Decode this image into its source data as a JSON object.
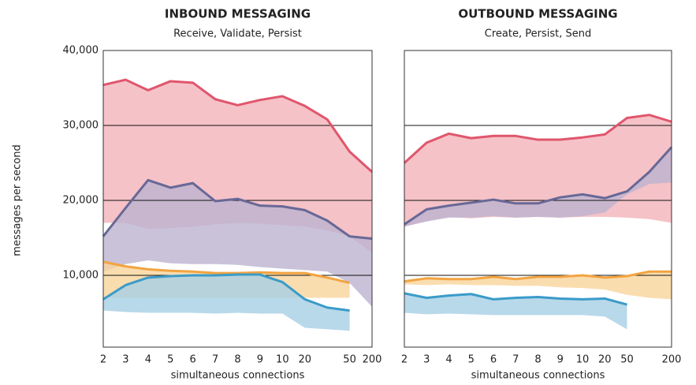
{
  "chart_data": [
    {
      "type": "band-line",
      "title": "INBOUND MESSAGING",
      "subtitle": "Receive, Validate, Persist",
      "y_label": "messages per second",
      "x_label": "simultaneous connections",
      "categories": [
        "2",
        "3",
        "4",
        "5",
        "6",
        "7",
        "8",
        "9",
        "10",
        "20",
        null,
        "50",
        "200"
      ],
      "ylim": [
        0,
        40000
      ],
      "yticks": [
        {
          "value": 10000,
          "label": "10,000"
        },
        {
          "value": 20000,
          "label": "20,000"
        },
        {
          "value": 30000,
          "label": "30,000"
        },
        {
          "value": 40000,
          "label": "40,000"
        }
      ],
      "series": [
        {
          "color": "#e0566c",
          "band_color": "#f2b3ba",
          "values": [
            35400,
            36100,
            34700,
            35900,
            35700,
            33500,
            32700,
            33400,
            33900,
            32600,
            30800,
            26500,
            23800
          ],
          "band_low": [
            17000,
            17000,
            16200,
            16300,
            16500,
            16800,
            17000,
            16900,
            16700,
            16500,
            16000,
            15200,
            13000
          ]
        },
        {
          "color": "#686896",
          "band_color": "#bbb3cf",
          "values": [
            15200,
            19000,
            22700,
            21700,
            22300,
            19900,
            20200,
            19300,
            19200,
            18700,
            17300,
            15200,
            14900
          ],
          "band_low": [
            10500,
            11500,
            12000,
            11600,
            11500,
            11500,
            11400,
            11100,
            10900,
            10700,
            10500,
            9000,
            5800
          ]
        },
        {
          "color": "#f2a441",
          "band_color": "#f9d49b",
          "values": [
            11800,
            11200,
            10800,
            10600,
            10500,
            10300,
            10300,
            10400,
            10300,
            10300,
            9700,
            9000,
            null
          ],
          "band_low": [
            7000,
            7000,
            7000,
            7000,
            7000,
            7000,
            7000,
            7000,
            7000,
            7000,
            7000,
            7000,
            null
          ]
        },
        {
          "color": "#3a9bc9",
          "band_color": "#a6cfe5",
          "values": [
            6800,
            8700,
            9700,
            9900,
            10000,
            10000,
            10100,
            10100,
            9100,
            6800,
            5700,
            5300,
            null
          ],
          "band_low": [
            5300,
            5100,
            5000,
            5000,
            5000,
            4900,
            5000,
            4900,
            4900,
            3000,
            2800,
            2600,
            null
          ]
        }
      ]
    },
    {
      "type": "band-line",
      "title": "OUTBOUND MESSAGING",
      "subtitle": "Create, Persist, Send",
      "x_label": "simultaneous connections",
      "categories": [
        "2",
        "3",
        "4",
        "5",
        "6",
        "7",
        "8",
        "9",
        "10",
        "20",
        "50",
        null,
        "200"
      ],
      "ylim": [
        0,
        40000
      ],
      "yticks": [
        10000,
        20000,
        30000
      ],
      "series": [
        {
          "color": "#e0566c",
          "band_color": "#f2b3ba",
          "values": [
            25000,
            27700,
            28900,
            28300,
            28600,
            28600,
            28100,
            28100,
            28400,
            28800,
            31000,
            31400,
            30500
          ],
          "band_low": [
            16500,
            17200,
            17800,
            17600,
            17800,
            17700,
            17800,
            17700,
            17800,
            17800,
            17700,
            17500,
            17000
          ]
        },
        {
          "color": "#686896",
          "band_color": "#bbb3cf",
          "values": [
            16800,
            18800,
            19300,
            19700,
            20100,
            19600,
            19600,
            20400,
            20800,
            20300,
            21200,
            23800,
            27100
          ],
          "band_low": [
            16500,
            17200,
            17700,
            17700,
            17900,
            17700,
            17800,
            17700,
            17900,
            18400,
            20800,
            22200,
            22400
          ]
        },
        {
          "color": "#f2a441",
          "band_color": "#f9d49b",
          "values": [
            9200,
            9600,
            9500,
            9500,
            9800,
            9500,
            9800,
            9800,
            10000,
            9700,
            9900,
            10500,
            10500
          ],
          "band_low": [
            8800,
            8700,
            8800,
            8700,
            8700,
            8600,
            8600,
            8400,
            8300,
            8100,
            7400,
            7000,
            6800
          ]
        },
        {
          "color": "#3a9bc9",
          "band_color": "#a6cfe5",
          "values": [
            7600,
            7000,
            7300,
            7500,
            6800,
            7000,
            7100,
            6900,
            6800,
            6900,
            6100,
            null,
            null
          ],
          "band_low": [
            5000,
            4800,
            4900,
            4800,
            4700,
            4700,
            4700,
            4700,
            4700,
            4500,
            2800,
            null,
            null
          ]
        }
      ]
    }
  ]
}
